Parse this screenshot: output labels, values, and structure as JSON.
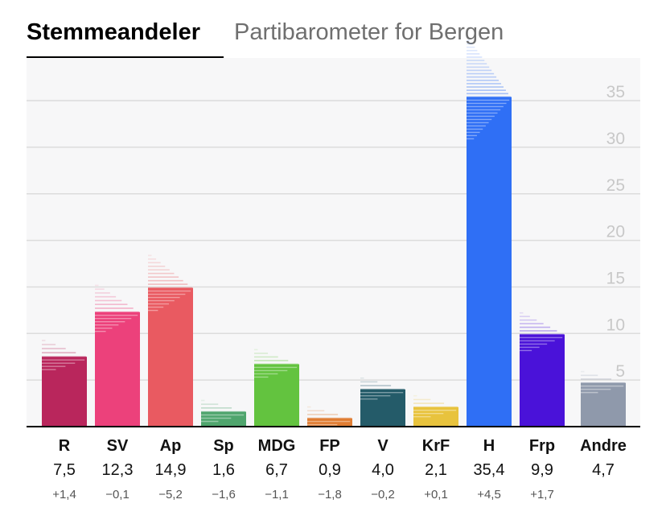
{
  "tabs": {
    "active": "Stemmeandeler",
    "inactive": "Partibarometer for Bergen"
  },
  "chart_data": {
    "type": "bar",
    "title": "Stemmeandeler",
    "subtitle": "Partibarometer for Bergen",
    "categories": [
      "R",
      "SV",
      "Ap",
      "Sp",
      "MDG",
      "FP",
      "V",
      "KrF",
      "H",
      "Frp",
      "Andre"
    ],
    "values": [
      7.5,
      12.3,
      14.9,
      1.6,
      6.7,
      0.9,
      4.0,
      2.1,
      35.4,
      9.9,
      4.7
    ],
    "value_labels": [
      "7,5",
      "12,3",
      "14,9",
      "1,6",
      "6,7",
      "0,9",
      "4,0",
      "2,1",
      "35,4",
      "9,9",
      "4,7"
    ],
    "change_labels": [
      "+1,4",
      "−0,1",
      "−5,2",
      "−1,6",
      "−1,1",
      "−1,8",
      "−0,2",
      "+0,1",
      "+4,5",
      "+1,7",
      ""
    ],
    "colors": [
      "#b9265c",
      "#ec417b",
      "#e95a61",
      "#4fa56d",
      "#63c33f",
      "#e07d33",
      "#245b69",
      "#e8c33d",
      "#2f6ff5",
      "#4a12d9",
      "#8f99ab"
    ],
    "yticks": [
      5,
      10,
      15,
      20,
      25,
      30,
      35
    ],
    "ylim": [
      0,
      40
    ],
    "xlabel": "",
    "ylabel": "",
    "grid": true
  }
}
